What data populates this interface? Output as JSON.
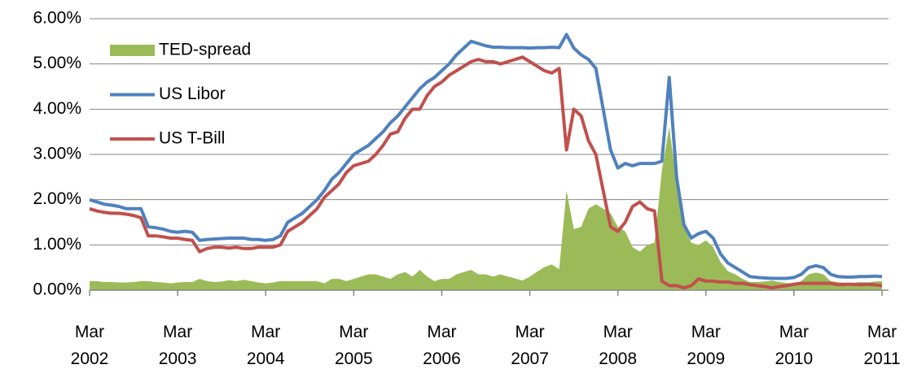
{
  "chart_data": {
    "type": "line",
    "legend": "upper left",
    "grid": true,
    "x": [
      "2002-03",
      "2002-04",
      "2002-05",
      "2002-06",
      "2002-07",
      "2002-08",
      "2002-09",
      "2002-10",
      "2002-11",
      "2002-12",
      "2003-01",
      "2003-02",
      "2003-03",
      "2003-04",
      "2003-05",
      "2003-06",
      "2003-07",
      "2003-08",
      "2003-09",
      "2003-10",
      "2003-11",
      "2003-12",
      "2004-01",
      "2004-02",
      "2004-03",
      "2004-04",
      "2004-05",
      "2004-06",
      "2004-07",
      "2004-08",
      "2004-09",
      "2004-10",
      "2004-11",
      "2004-12",
      "2005-01",
      "2005-02",
      "2005-03",
      "2005-04",
      "2005-05",
      "2005-06",
      "2005-07",
      "2005-08",
      "2005-09",
      "2005-10",
      "2005-11",
      "2005-12",
      "2006-01",
      "2006-02",
      "2006-03",
      "2006-04",
      "2006-05",
      "2006-06",
      "2006-07",
      "2006-08",
      "2006-09",
      "2006-10",
      "2006-11",
      "2006-12",
      "2007-01",
      "2007-02",
      "2007-03",
      "2007-04",
      "2007-05",
      "2007-06",
      "2007-07",
      "2007-08",
      "2007-09",
      "2007-10",
      "2007-11",
      "2007-12",
      "2008-01",
      "2008-02",
      "2008-03",
      "2008-04",
      "2008-05",
      "2008-06",
      "2008-07",
      "2008-08",
      "2008-09",
      "2008-10",
      "2008-11",
      "2008-12",
      "2009-01",
      "2009-02",
      "2009-03",
      "2009-04",
      "2009-05",
      "2009-06",
      "2009-07",
      "2009-08",
      "2009-09",
      "2009-10",
      "2009-11",
      "2009-12",
      "2010-01",
      "2010-02",
      "2010-03",
      "2010-04",
      "2010-05",
      "2010-06",
      "2010-07",
      "2010-08",
      "2010-09",
      "2010-10",
      "2010-11",
      "2010-12",
      "2011-01",
      "2011-02",
      "2011-03"
    ],
    "series": [
      {
        "name": "TED-spread",
        "color": "#9bbb59",
        "kind": "area",
        "values": [
          0.2,
          0.2,
          0.18,
          0.18,
          0.17,
          0.17,
          0.18,
          0.2,
          0.2,
          0.18,
          0.17,
          0.15,
          0.17,
          0.18,
          0.18,
          0.25,
          0.2,
          0.18,
          0.19,
          0.22,
          0.2,
          0.23,
          0.2,
          0.17,
          0.15,
          0.17,
          0.2,
          0.2,
          0.2,
          0.2,
          0.2,
          0.2,
          0.15,
          0.25,
          0.25,
          0.2,
          0.25,
          0.3,
          0.35,
          0.35,
          0.3,
          0.25,
          0.35,
          0.4,
          0.3,
          0.45,
          0.3,
          0.2,
          0.25,
          0.25,
          0.35,
          0.4,
          0.45,
          0.35,
          0.35,
          0.3,
          0.35,
          0.3,
          0.26,
          0.21,
          0.3,
          0.41,
          0.51,
          0.57,
          0.46,
          2.2,
          1.35,
          1.4,
          1.8,
          1.9,
          1.8,
          1.7,
          1.4,
          1.3,
          0.95,
          0.85,
          1.0,
          1.05,
          2.65,
          3.6,
          2.4,
          1.4,
          1.05,
          1.0,
          1.1,
          0.95,
          0.62,
          0.42,
          0.35,
          0.25,
          0.18,
          0.18,
          0.19,
          0.21,
          0.18,
          0.16,
          0.15,
          0.2,
          0.35,
          0.39,
          0.35,
          0.2,
          0.18,
          0.16,
          0.16,
          0.18,
          0.17,
          0.19,
          0.2
        ]
      },
      {
        "name": "US Libor",
        "color": "#4f81bd",
        "kind": "line",
        "values": [
          2.0,
          1.95,
          1.9,
          1.88,
          1.85,
          1.8,
          1.8,
          1.8,
          1.4,
          1.38,
          1.35,
          1.3,
          1.28,
          1.3,
          1.28,
          1.1,
          1.12,
          1.13,
          1.14,
          1.15,
          1.15,
          1.15,
          1.12,
          1.12,
          1.1,
          1.12,
          1.2,
          1.5,
          1.6,
          1.7,
          1.85,
          2.0,
          2.2,
          2.45,
          2.6,
          2.8,
          3.0,
          3.1,
          3.2,
          3.35,
          3.5,
          3.7,
          3.85,
          4.05,
          4.25,
          4.45,
          4.6,
          4.7,
          4.85,
          5.0,
          5.2,
          5.35,
          5.5,
          5.45,
          5.4,
          5.37,
          5.37,
          5.36,
          5.36,
          5.36,
          5.35,
          5.36,
          5.36,
          5.37,
          5.36,
          5.65,
          5.35,
          5.2,
          5.1,
          4.9,
          4.0,
          3.1,
          2.7,
          2.8,
          2.75,
          2.8,
          2.8,
          2.8,
          2.85,
          4.7,
          2.5,
          1.45,
          1.15,
          1.25,
          1.3,
          1.15,
          0.8,
          0.6,
          0.5,
          0.4,
          0.3,
          0.28,
          0.27,
          0.26,
          0.26,
          0.26,
          0.28,
          0.35,
          0.5,
          0.54,
          0.5,
          0.35,
          0.3,
          0.29,
          0.29,
          0.3,
          0.3,
          0.31,
          0.3
        ]
      },
      {
        "name": "US T-Bill",
        "color": "#c0504d",
        "kind": "line",
        "values": [
          1.8,
          1.75,
          1.72,
          1.7,
          1.7,
          1.68,
          1.65,
          1.6,
          1.2,
          1.2,
          1.18,
          1.15,
          1.15,
          1.12,
          1.1,
          0.85,
          0.92,
          0.95,
          0.95,
          0.93,
          0.95,
          0.92,
          0.92,
          0.95,
          0.95,
          0.95,
          1.0,
          1.3,
          1.4,
          1.5,
          1.65,
          1.8,
          2.05,
          2.2,
          2.35,
          2.6,
          2.75,
          2.8,
          2.85,
          3.0,
          3.2,
          3.45,
          3.5,
          3.8,
          4.0,
          4.0,
          4.3,
          4.5,
          4.6,
          4.75,
          4.85,
          4.95,
          5.05,
          5.1,
          5.05,
          5.05,
          5.0,
          5.05,
          5.1,
          5.15,
          5.05,
          4.95,
          4.85,
          4.8,
          4.9,
          3.1,
          4.0,
          3.85,
          3.3,
          3.0,
          2.2,
          1.4,
          1.3,
          1.5,
          1.85,
          1.95,
          1.8,
          1.75,
          0.2,
          0.1,
          0.1,
          0.05,
          0.1,
          0.25,
          0.2,
          0.2,
          0.18,
          0.18,
          0.15,
          0.15,
          0.12,
          0.1,
          0.08,
          0.05,
          0.08,
          0.1,
          0.13,
          0.15,
          0.15,
          0.15,
          0.15,
          0.15,
          0.12,
          0.13,
          0.13,
          0.12,
          0.13,
          0.12,
          0.1
        ]
      }
    ],
    "xlim": [
      "2002-03",
      "2011-03"
    ],
    "xticks": [
      {
        "value": "2002-03",
        "label": "Mar 2002"
      },
      {
        "value": "2003-03",
        "label": "Mar 2003"
      },
      {
        "value": "2004-03",
        "label": "Mar 2004"
      },
      {
        "value": "2005-03",
        "label": "Mar 2005"
      },
      {
        "value": "2006-03",
        "label": "Mar 2006"
      },
      {
        "value": "2007-03",
        "label": "Mar 2007"
      },
      {
        "value": "2008-03",
        "label": "Mar 2008"
      },
      {
        "value": "2009-03",
        "label": "Mar 2009"
      },
      {
        "value": "2010-03",
        "label": "Mar 2010"
      },
      {
        "value": "2011-03",
        "label": "Mar 2011"
      }
    ],
    "ylim": [
      0,
      6
    ],
    "yticks": [
      {
        "value": 0,
        "label": "0.00%"
      },
      {
        "value": 1,
        "label": "1.00%"
      },
      {
        "value": 2,
        "label": "2.00%"
      },
      {
        "value": 3,
        "label": "3.00%"
      },
      {
        "value": 4,
        "label": "4.00%"
      },
      {
        "value": 5,
        "label": "5.00%"
      },
      {
        "value": 6,
        "label": "6.00%"
      }
    ]
  }
}
